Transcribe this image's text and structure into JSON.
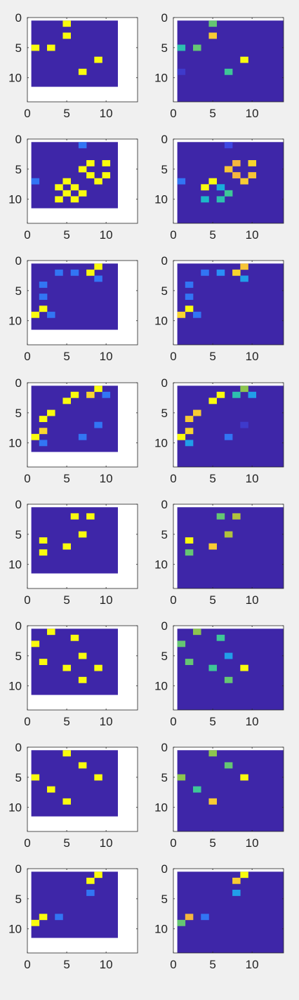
{
  "figure": {
    "background": "#f0f0f0",
    "axes_color": "#262626",
    "plot_background": "#ffffff"
  },
  "colormap": {
    "name": "parula",
    "clim": [
      0,
      1
    ],
    "stops": [
      "#3e26a8",
      "#3f4ff0",
      "#2a8ff7",
      "#13b4d4",
      "#3ec797",
      "#a0c53d",
      "#f5b53e",
      "#f9dd2a",
      "#f9fb0e"
    ]
  },
  "chart_data": [
    {
      "type": "heatmap",
      "panel": "1-left",
      "xlim": [
        0,
        14
      ],
      "ylim": [
        0,
        14
      ],
      "y_reversed": true,
      "xticks": [
        "0",
        "5",
        "10"
      ],
      "yticks": [
        "0",
        "5",
        "10"
      ],
      "matrix_size": [
        11,
        11
      ],
      "background_value": 0,
      "cells": [
        {
          "x": 5,
          "y": 1,
          "v": 1
        },
        {
          "x": 5,
          "y": 3,
          "v": 1
        },
        {
          "x": 1,
          "y": 5,
          "v": 1
        },
        {
          "x": 3,
          "y": 5,
          "v": 1
        },
        {
          "x": 9,
          "y": 7,
          "v": 1
        },
        {
          "x": 7,
          "y": 9,
          "v": 1
        }
      ]
    },
    {
      "type": "heatmap",
      "panel": "1-right",
      "xlim": [
        0,
        14
      ],
      "ylim": [
        0,
        14
      ],
      "y_reversed": true,
      "xticks": [
        "0",
        "5",
        "10"
      ],
      "yticks": [
        "0",
        "5",
        "10"
      ],
      "matrix_size": [
        14,
        14
      ],
      "background_value": 0,
      "cells": [
        {
          "x": 5,
          "y": 1,
          "v": 0.55
        },
        {
          "x": 5,
          "y": 3,
          "v": 0.82
        },
        {
          "x": 1,
          "y": 5,
          "v": 0.45
        },
        {
          "x": 3,
          "y": 5,
          "v": 0.55
        },
        {
          "x": 9,
          "y": 7,
          "v": 1
        },
        {
          "x": 7,
          "y": 9,
          "v": 0.5
        },
        {
          "x": 1,
          "y": 9,
          "v": 0.06
        }
      ]
    },
    {
      "type": "heatmap",
      "panel": "2-left",
      "xlim": [
        0,
        14
      ],
      "ylim": [
        0,
        14
      ],
      "y_reversed": true,
      "xticks": [
        "0",
        "5",
        "10"
      ],
      "yticks": [
        "0",
        "5",
        "10"
      ],
      "matrix_size": [
        11,
        11
      ],
      "background_value": 0,
      "cells": [
        {
          "x": 7,
          "y": 1,
          "v": 0.2
        },
        {
          "x": 8,
          "y": 4,
          "v": 1
        },
        {
          "x": 10,
          "y": 4,
          "v": 1
        },
        {
          "x": 7,
          "y": 5,
          "v": 1
        },
        {
          "x": 8,
          "y": 6,
          "v": 1
        },
        {
          "x": 10,
          "y": 6,
          "v": 1
        },
        {
          "x": 1,
          "y": 7,
          "v": 0.2
        },
        {
          "x": 5,
          "y": 7,
          "v": 1
        },
        {
          "x": 9,
          "y": 7,
          "v": 1
        },
        {
          "x": 4,
          "y": 8,
          "v": 1
        },
        {
          "x": 6,
          "y": 8,
          "v": 1
        },
        {
          "x": 5,
          "y": 9,
          "v": 1
        },
        {
          "x": 7,
          "y": 9,
          "v": 1
        },
        {
          "x": 4,
          "y": 10,
          "v": 1
        },
        {
          "x": 6,
          "y": 10,
          "v": 1
        }
      ]
    },
    {
      "type": "heatmap",
      "panel": "2-right",
      "xlim": [
        0,
        14
      ],
      "ylim": [
        0,
        14
      ],
      "y_reversed": true,
      "xticks": [
        "0",
        "5",
        "10"
      ],
      "yticks": [
        "0",
        "5",
        "10"
      ],
      "matrix_size": [
        14,
        14
      ],
      "background_value": 0,
      "cells": [
        {
          "x": 7,
          "y": 1,
          "v": 0.1
        },
        {
          "x": 8,
          "y": 4,
          "v": 0.75
        },
        {
          "x": 10,
          "y": 4,
          "v": 0.85
        },
        {
          "x": 7,
          "y": 5,
          "v": 0.8
        },
        {
          "x": 8,
          "y": 6,
          "v": 0.75
        },
        {
          "x": 10,
          "y": 6,
          "v": 0.8
        },
        {
          "x": 1,
          "y": 7,
          "v": 0.2
        },
        {
          "x": 5,
          "y": 7,
          "v": 1
        },
        {
          "x": 9,
          "y": 7,
          "v": 0.82
        },
        {
          "x": 4,
          "y": 8,
          "v": 1
        },
        {
          "x": 6,
          "y": 8,
          "v": 0.35
        },
        {
          "x": 7,
          "y": 9,
          "v": 0.5
        },
        {
          "x": 4,
          "y": 10,
          "v": 0.4
        },
        {
          "x": 6,
          "y": 10,
          "v": 0.45
        }
      ]
    },
    {
      "type": "heatmap",
      "panel": "3-left",
      "xlim": [
        0,
        14
      ],
      "ylim": [
        0,
        14
      ],
      "y_reversed": true,
      "xticks": [
        "0",
        "5",
        "10"
      ],
      "yticks": [
        "0",
        "5",
        "10"
      ],
      "matrix_size": [
        11,
        11
      ],
      "background_value": 0,
      "cells": [
        {
          "x": 9,
          "y": 1,
          "v": 1
        },
        {
          "x": 4,
          "y": 2,
          "v": 0.2
        },
        {
          "x": 6,
          "y": 2,
          "v": 0.2
        },
        {
          "x": 8,
          "y": 2,
          "v": 1
        },
        {
          "x": 9,
          "y": 3,
          "v": 0.2
        },
        {
          "x": 2,
          "y": 4,
          "v": 0.2
        },
        {
          "x": 2,
          "y": 6,
          "v": 0.2
        },
        {
          "x": 2,
          "y": 8,
          "v": 1
        },
        {
          "x": 1,
          "y": 9,
          "v": 1
        },
        {
          "x": 3,
          "y": 9,
          "v": 0.2
        }
      ]
    },
    {
      "type": "heatmap",
      "panel": "3-right",
      "xlim": [
        0,
        14
      ],
      "ylim": [
        0,
        14
      ],
      "y_reversed": true,
      "xticks": [
        "0",
        "5",
        "10"
      ],
      "yticks": [
        "0",
        "5",
        "10"
      ],
      "matrix_size": [
        14,
        14
      ],
      "background_value": 0,
      "cells": [
        {
          "x": 9,
          "y": 1,
          "v": 0.8
        },
        {
          "x": 4,
          "y": 2,
          "v": 0.2
        },
        {
          "x": 6,
          "y": 2,
          "v": 0.25
        },
        {
          "x": 8,
          "y": 2,
          "v": 0.85
        },
        {
          "x": 9,
          "y": 3,
          "v": 0.3
        },
        {
          "x": 2,
          "y": 4,
          "v": 0.2
        },
        {
          "x": 2,
          "y": 6,
          "v": 0.2
        },
        {
          "x": 2,
          "y": 8,
          "v": 1
        },
        {
          "x": 1,
          "y": 9,
          "v": 0.85
        },
        {
          "x": 3,
          "y": 9,
          "v": 0.2
        }
      ]
    },
    {
      "type": "heatmap",
      "panel": "4-left",
      "xlim": [
        0,
        14
      ],
      "ylim": [
        0,
        14
      ],
      "y_reversed": true,
      "xticks": [
        "0",
        "5",
        "10"
      ],
      "yticks": [
        "0",
        "5",
        "10"
      ],
      "matrix_size": [
        11,
        11
      ],
      "background_value": 0,
      "cells": [
        {
          "x": 9,
          "y": 1,
          "v": 1
        },
        {
          "x": 6,
          "y": 2,
          "v": 1
        },
        {
          "x": 8,
          "y": 2,
          "v": 0.85
        },
        {
          "x": 10,
          "y": 2,
          "v": 0.2
        },
        {
          "x": 5,
          "y": 3,
          "v": 1
        },
        {
          "x": 3,
          "y": 5,
          "v": 1
        },
        {
          "x": 2,
          "y": 6,
          "v": 1
        },
        {
          "x": 9,
          "y": 7,
          "v": 0.2
        },
        {
          "x": 2,
          "y": 8,
          "v": 0.85
        },
        {
          "x": 1,
          "y": 9,
          "v": 1
        },
        {
          "x": 7,
          "y": 9,
          "v": 0.2
        },
        {
          "x": 2,
          "y": 10,
          "v": 0.2
        }
      ]
    },
    {
      "type": "heatmap",
      "panel": "4-right",
      "xlim": [
        0,
        14
      ],
      "ylim": [
        0,
        14
      ],
      "y_reversed": true,
      "xticks": [
        "0",
        "5",
        "10"
      ],
      "yticks": [
        "0",
        "5",
        "10"
      ],
      "matrix_size": [
        14,
        14
      ],
      "background_value": 0,
      "cells": [
        {
          "x": 9,
          "y": 1,
          "v": 0.6
        },
        {
          "x": 6,
          "y": 2,
          "v": 1
        },
        {
          "x": 8,
          "y": 2,
          "v": 0.45
        },
        {
          "x": 10,
          "y": 2,
          "v": 0.3
        },
        {
          "x": 5,
          "y": 3,
          "v": 1
        },
        {
          "x": 3,
          "y": 5,
          "v": 0.82
        },
        {
          "x": 2,
          "y": 6,
          "v": 0.82
        },
        {
          "x": 9,
          "y": 7,
          "v": 0.06
        },
        {
          "x": 2,
          "y": 8,
          "v": 0.85
        },
        {
          "x": 1,
          "y": 9,
          "v": 1
        },
        {
          "x": 7,
          "y": 9,
          "v": 0.2
        },
        {
          "x": 2,
          "y": 10,
          "v": 0.3
        }
      ]
    },
    {
      "type": "heatmap",
      "panel": "5-left",
      "xlim": [
        0,
        14
      ],
      "ylim": [
        0,
        14
      ],
      "y_reversed": true,
      "xticks": [
        "0",
        "5",
        "10"
      ],
      "yticks": [
        "0",
        "5",
        "10"
      ],
      "matrix_size": [
        11,
        11
      ],
      "background_value": 0,
      "cells": [
        {
          "x": 6,
          "y": 2,
          "v": 1
        },
        {
          "x": 8,
          "y": 2,
          "v": 1
        },
        {
          "x": 7,
          "y": 5,
          "v": 1
        },
        {
          "x": 2,
          "y": 6,
          "v": 1
        },
        {
          "x": 5,
          "y": 7,
          "v": 1
        },
        {
          "x": 2,
          "y": 8,
          "v": 1
        }
      ]
    },
    {
      "type": "heatmap",
      "panel": "5-right",
      "xlim": [
        0,
        14
      ],
      "ylim": [
        0,
        14
      ],
      "y_reversed": true,
      "xticks": [
        "0",
        "5",
        "10"
      ],
      "yticks": [
        "0",
        "5",
        "10"
      ],
      "matrix_size": [
        14,
        14
      ],
      "background_value": 0,
      "cells": [
        {
          "x": 6,
          "y": 2,
          "v": 0.55
        },
        {
          "x": 8,
          "y": 2,
          "v": 0.65
        },
        {
          "x": 7,
          "y": 5,
          "v": 0.65
        },
        {
          "x": 2,
          "y": 6,
          "v": 1
        },
        {
          "x": 5,
          "y": 7,
          "v": 0.82
        },
        {
          "x": 2,
          "y": 8,
          "v": 0.55
        }
      ]
    },
    {
      "type": "heatmap",
      "panel": "6-left",
      "xlim": [
        0,
        14
      ],
      "ylim": [
        0,
        14
      ],
      "y_reversed": true,
      "xticks": [
        "0",
        "5",
        "10"
      ],
      "yticks": [
        "0",
        "5",
        "10"
      ],
      "matrix_size": [
        11,
        11
      ],
      "background_value": 0,
      "cells": [
        {
          "x": 3,
          "y": 1,
          "v": 1
        },
        {
          "x": 6,
          "y": 2,
          "v": 1
        },
        {
          "x": 1,
          "y": 3,
          "v": 1
        },
        {
          "x": 7,
          "y": 5,
          "v": 1
        },
        {
          "x": 2,
          "y": 6,
          "v": 1
        },
        {
          "x": 5,
          "y": 7,
          "v": 1
        },
        {
          "x": 9,
          "y": 7,
          "v": 1
        },
        {
          "x": 7,
          "y": 9,
          "v": 1
        }
      ]
    },
    {
      "type": "heatmap",
      "panel": "6-right",
      "xlim": [
        0,
        14
      ],
      "ylim": [
        0,
        14
      ],
      "y_reversed": true,
      "xticks": [
        "0",
        "5",
        "10"
      ],
      "yticks": [
        "0",
        "5",
        "10"
      ],
      "matrix_size": [
        14,
        14
      ],
      "background_value": 0,
      "cells": [
        {
          "x": 3,
          "y": 1,
          "v": 0.6
        },
        {
          "x": 6,
          "y": 2,
          "v": 0.5
        },
        {
          "x": 1,
          "y": 3,
          "v": 0.55
        },
        {
          "x": 7,
          "y": 5,
          "v": 0.3
        },
        {
          "x": 2,
          "y": 6,
          "v": 0.55
        },
        {
          "x": 5,
          "y": 7,
          "v": 0.5
        },
        {
          "x": 9,
          "y": 7,
          "v": 1
        },
        {
          "x": 7,
          "y": 9,
          "v": 0.55
        }
      ]
    },
    {
      "type": "heatmap",
      "panel": "7-left",
      "xlim": [
        0,
        14
      ],
      "ylim": [
        0,
        14
      ],
      "y_reversed": true,
      "xticks": [
        "0",
        "5",
        "10"
      ],
      "yticks": [
        "0",
        "5",
        "10"
      ],
      "matrix_size": [
        11,
        11
      ],
      "background_value": 0,
      "cells": [
        {
          "x": 5,
          "y": 1,
          "v": 1
        },
        {
          "x": 7,
          "y": 3,
          "v": 1
        },
        {
          "x": 1,
          "y": 5,
          "v": 1
        },
        {
          "x": 9,
          "y": 5,
          "v": 1
        },
        {
          "x": 3,
          "y": 7,
          "v": 1
        },
        {
          "x": 5,
          "y": 9,
          "v": 1
        }
      ]
    },
    {
      "type": "heatmap",
      "panel": "7-right",
      "xlim": [
        0,
        14
      ],
      "ylim": [
        0,
        14
      ],
      "y_reversed": true,
      "xticks": [
        "0",
        "5",
        "10"
      ],
      "yticks": [
        "0",
        "5",
        "10"
      ],
      "matrix_size": [
        14,
        14
      ],
      "background_value": 0,
      "cells": [
        {
          "x": 5,
          "y": 1,
          "v": 0.6
        },
        {
          "x": 7,
          "y": 3,
          "v": 0.55
        },
        {
          "x": 1,
          "y": 5,
          "v": 0.6
        },
        {
          "x": 9,
          "y": 5,
          "v": 1
        },
        {
          "x": 3,
          "y": 7,
          "v": 0.5
        },
        {
          "x": 5,
          "y": 9,
          "v": 0.82
        }
      ]
    },
    {
      "type": "heatmap",
      "panel": "8-left",
      "xlim": [
        0,
        14
      ],
      "ylim": [
        0,
        14
      ],
      "y_reversed": true,
      "xticks": [
        "0",
        "5",
        "10"
      ],
      "yticks": [
        "0",
        "5",
        "10"
      ],
      "matrix_size": [
        11,
        11
      ],
      "background_value": 0,
      "cells": [
        {
          "x": 9,
          "y": 1,
          "v": 1
        },
        {
          "x": 8,
          "y": 2,
          "v": 1
        },
        {
          "x": 8,
          "y": 4,
          "v": 0.2
        },
        {
          "x": 2,
          "y": 8,
          "v": 1
        },
        {
          "x": 4,
          "y": 8,
          "v": 0.2
        },
        {
          "x": 1,
          "y": 9,
          "v": 1
        }
      ]
    },
    {
      "type": "heatmap",
      "panel": "8-right",
      "xlim": [
        0,
        14
      ],
      "ylim": [
        0,
        14
      ],
      "y_reversed": true,
      "xticks": [
        "0",
        "5",
        "10"
      ],
      "yticks": [
        "0",
        "5",
        "10"
      ],
      "matrix_size": [
        14,
        14
      ],
      "background_value": 0,
      "cells": [
        {
          "x": 9,
          "y": 1,
          "v": 1
        },
        {
          "x": 8,
          "y": 2,
          "v": 0.82
        },
        {
          "x": 8,
          "y": 4,
          "v": 0.3
        },
        {
          "x": 2,
          "y": 8,
          "v": 0.75
        },
        {
          "x": 4,
          "y": 8,
          "v": 0.2
        },
        {
          "x": 1,
          "y": 9,
          "v": 0.55
        }
      ]
    }
  ]
}
